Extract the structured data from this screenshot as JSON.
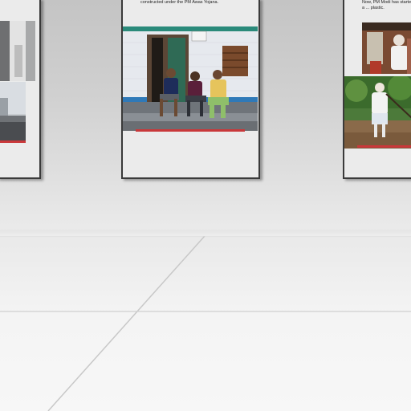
{
  "panels": [
    {
      "name": "left-panel",
      "caption": ""
    },
    {
      "name": "center-panel",
      "caption": "constructed under the PM Awas Yojana."
    },
    {
      "name": "right-panel",
      "caption": "Now, PM Modi has started a ... plastic."
    }
  ],
  "colors": {
    "accent_bar": "#c9383a",
    "house_wall": "#e6e9ee",
    "house_trim": "#2a8a7a",
    "house_stripe": "#2f79b8"
  }
}
